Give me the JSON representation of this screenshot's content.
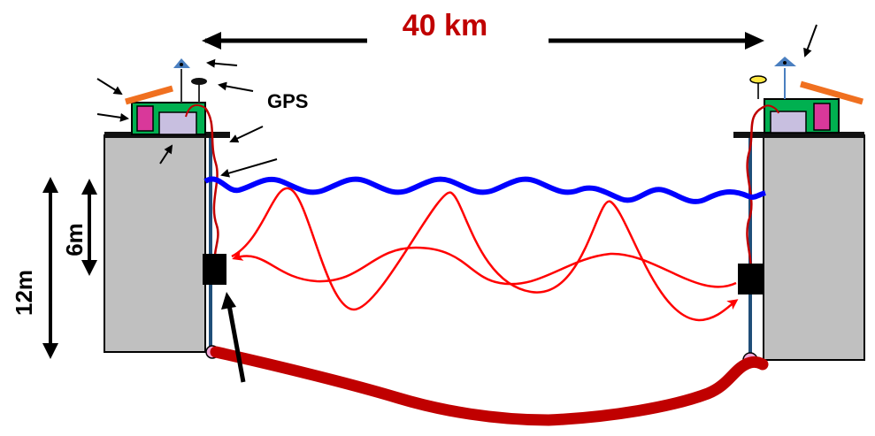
{
  "distance_label": "40 km",
  "gps_label": "GPS",
  "height_tall_label": "12m",
  "height_short_label": "6m",
  "colors": {
    "distance_text": "#c00000",
    "building_fill": "#c0c0c0",
    "water_surface": "#0000ff",
    "signal_path": "#ff0000",
    "seabed_cable": "#c00000",
    "equipment_box": "#00b050",
    "battery": "#d9389a",
    "solar_panel": "#f07020",
    "mast": "#1f4e79"
  }
}
